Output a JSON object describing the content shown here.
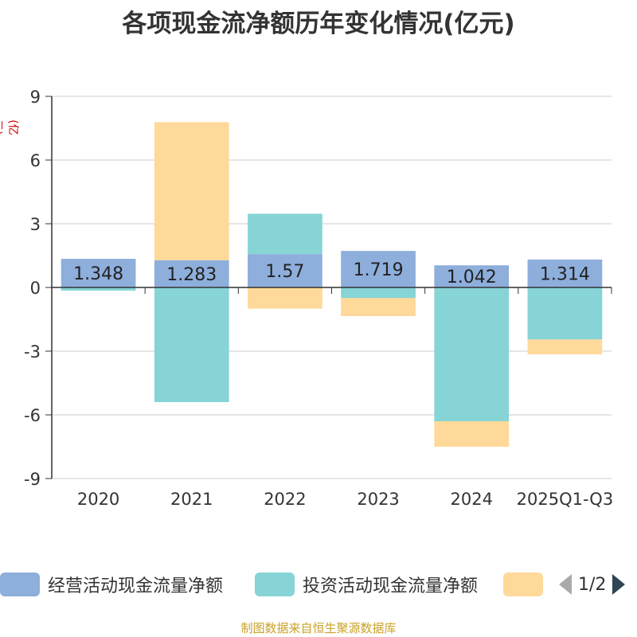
{
  "chart_title": "各项现金流净额历年变化情况(亿元)",
  "unit_label": "(亿元)",
  "source": "制图数据来自恒生聚源数据库",
  "legend": {
    "pager_text": "1/2",
    "items": [
      {
        "label": "经营活动现金流量净额",
        "color": "#8eaedc"
      },
      {
        "label": "投资活动现金流量净额",
        "color": "#86d4d6"
      },
      {
        "label": "",
        "color": "#ffd999"
      }
    ]
  },
  "chart_data": {
    "type": "bar",
    "stacked": true,
    "title": "各项现金流净额历年变化情况(亿元)",
    "ylabel": "(亿元)",
    "ylim": [
      -9,
      9
    ],
    "yticks": [
      9,
      6,
      3,
      0,
      -3,
      -6,
      -9
    ],
    "categories": [
      "2020",
      "2021",
      "2022",
      "2023",
      "2024",
      "2025Q1-Q3"
    ],
    "series": [
      {
        "name": "经营活动现金流量净额",
        "color": "#8eaedc",
        "show_labels": true,
        "values": [
          1.348,
          1.283,
          1.57,
          1.719,
          1.042,
          1.314
        ]
      },
      {
        "name": "投资活动现金流量净额",
        "color": "#86d4d6",
        "show_labels": false,
        "values": [
          -0.15,
          -5.4,
          1.9,
          -0.5,
          -6.3,
          -2.45
        ]
      },
      {
        "name": "",
        "color": "#ffd999",
        "show_labels": false,
        "values": [
          0,
          6.5,
          -1.0,
          -0.85,
          -1.2,
          -0.7
        ]
      }
    ]
  }
}
